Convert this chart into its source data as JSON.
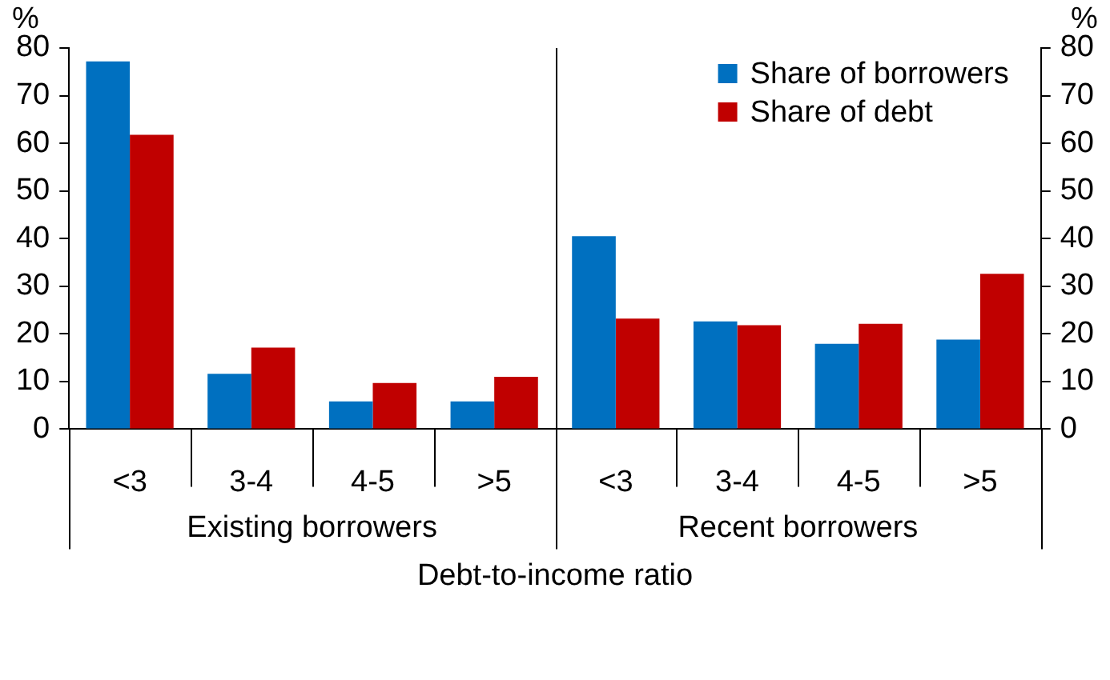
{
  "chart_data": {
    "type": "bar",
    "xlabel": "Debt-to-income ratio",
    "ylabel": "%",
    "y2label": "%",
    "categories": [
      "<3",
      "3-4",
      "4-5",
      ">5",
      "<3",
      "3-4",
      "4-5",
      ">5"
    ],
    "series": [
      {
        "name": "Share of borrowers",
        "color": "#0070c0",
        "values": [
          77.2,
          11.6,
          5.8,
          5.8,
          40.5,
          22.6,
          17.9,
          18.8
        ]
      },
      {
        "name": "Share of debt",
        "color": "#c00000",
        "values": [
          61.8,
          17.1,
          9.7,
          11.0,
          23.2,
          21.8,
          22.1,
          32.6
        ]
      }
    ],
    "ylim": [
      0,
      80
    ],
    "yticks": [
      0,
      10,
      20,
      30,
      40,
      50,
      60,
      70,
      80
    ],
    "y2lim": [
      0,
      80
    ],
    "y2ticks": [
      0,
      10,
      20,
      30,
      40,
      50,
      60,
      70,
      80
    ],
    "annotations": [
      "Existing borrowers",
      "Recent borrowers"
    ],
    "legend": "top right",
    "grid": false
  }
}
